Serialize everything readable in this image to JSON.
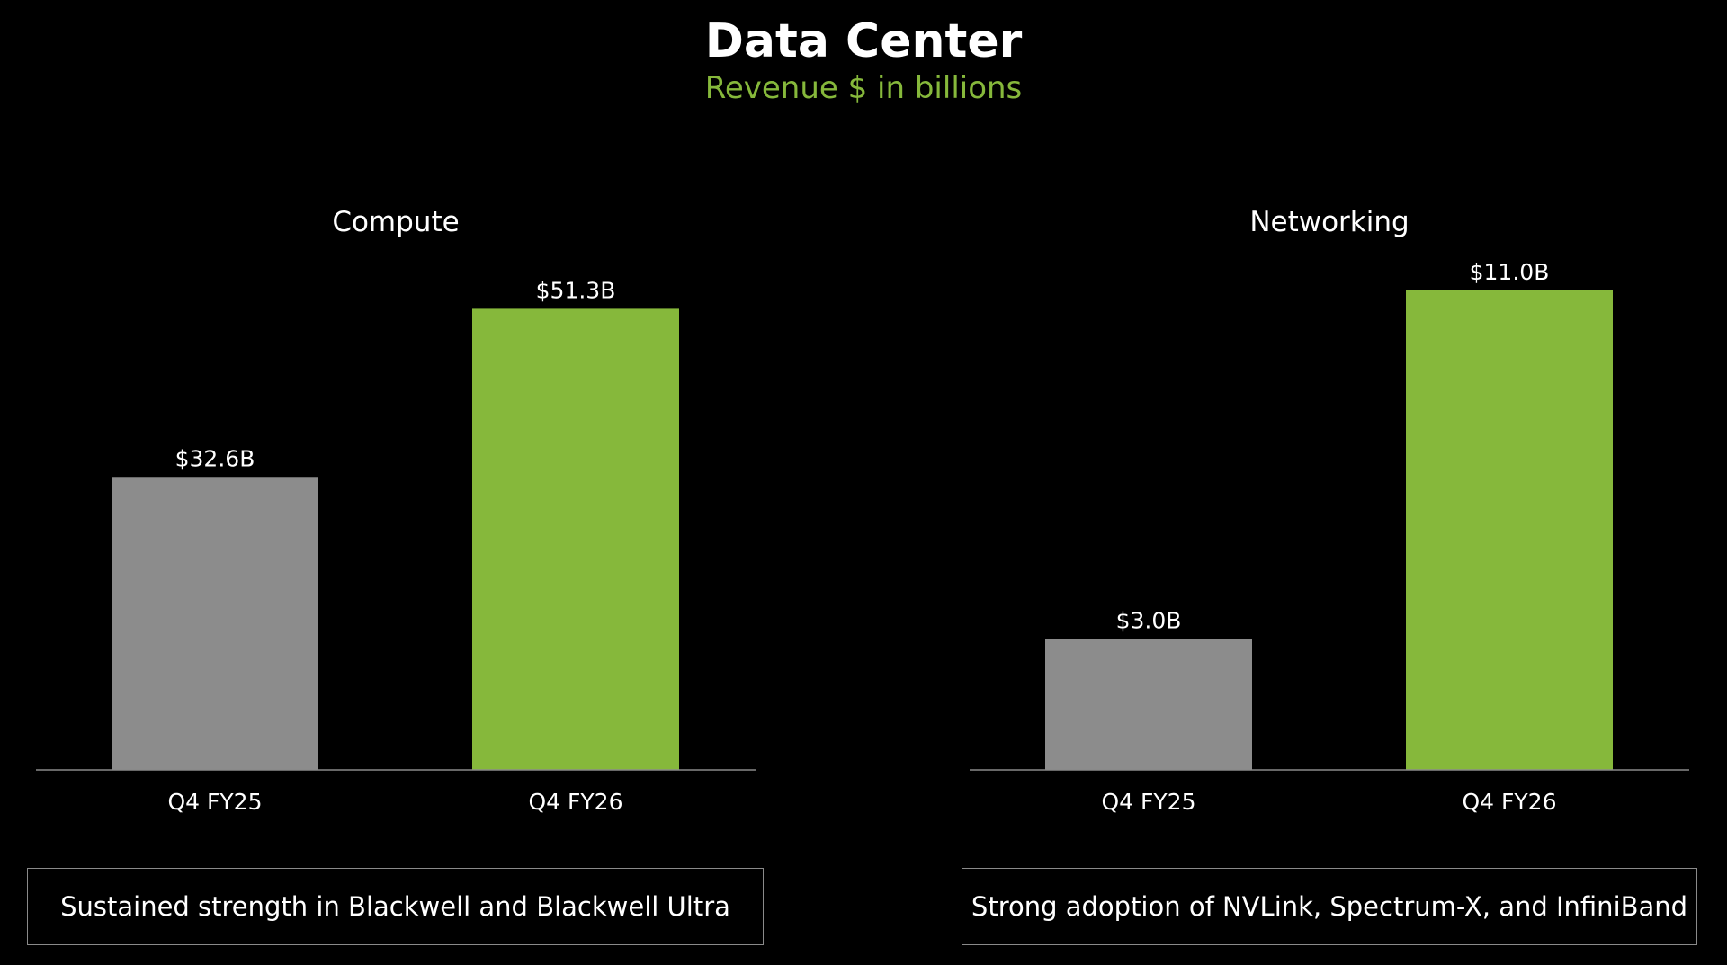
{
  "header": {
    "title": "Data Center",
    "subtitle": "Revenue $ in billions"
  },
  "colors": {
    "background": "#000000",
    "prior_period": "#8c8c8c",
    "current_period": "#86b83b",
    "subtitle": "#86b83b",
    "axis": "#8a8a8a",
    "text": "#ffffff"
  },
  "chart_data": [
    {
      "type": "bar",
      "title": "Compute",
      "categories": [
        "Q4 FY25",
        "Q4 FY26"
      ],
      "values": [
        32.6,
        51.3
      ],
      "data_labels": [
        "$32.6B",
        "$51.3B"
      ],
      "xlabel": "",
      "ylabel": "",
      "grid": false,
      "caption": "Sustained strength in Blackwell and Blackwell Ultra"
    },
    {
      "type": "bar",
      "title": "Networking",
      "categories": [
        "Q4 FY25",
        "Q4 FY26"
      ],
      "values": [
        3.0,
        11.0
      ],
      "data_labels": [
        "$3.0B",
        "$11.0B"
      ],
      "xlabel": "",
      "ylabel": "",
      "grid": false,
      "caption": "Strong adoption of NVLink, Spectrum-X, and InfiniBand"
    }
  ]
}
